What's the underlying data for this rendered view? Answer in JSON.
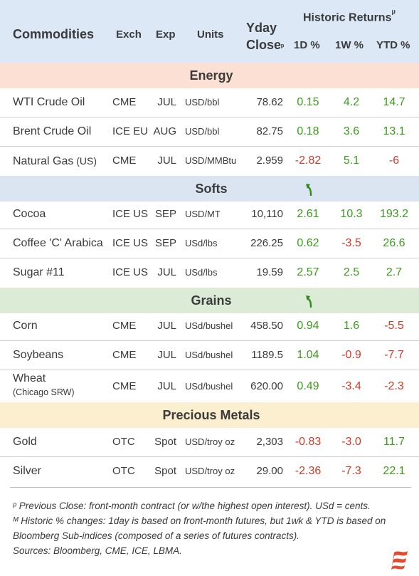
{
  "header": {
    "commodities": "Commodities",
    "exch": "Exch",
    "exp": "Exp",
    "units": "Units",
    "yday_line1": "Yday",
    "yday_line2": "Close",
    "yday_mark": "ᵖ",
    "historic": "Historic Returns",
    "historic_mark": "μ",
    "d1": "1D %",
    "w1": "1W %",
    "ytd": "YTD %"
  },
  "sections": {
    "energy": "Energy",
    "softs": "Softs",
    "grains": "Grains",
    "metals": "Precious Metals"
  },
  "rows": {
    "wti": {
      "name": "WTI Crude Oil",
      "exch": "CME",
      "exp": "JUL",
      "units": "USD/bbl",
      "close": "78.62",
      "d1": "0.15",
      "w1": "4.2",
      "ytd": "14.7"
    },
    "brent": {
      "name": "Brent Crude Oil",
      "exch": "ICE EU",
      "exp": "AUG",
      "units": "USD/bbl",
      "close": "82.75",
      "d1": "0.18",
      "w1": "3.6",
      "ytd": "13.1"
    },
    "natgas": {
      "name": "Natural Gas",
      "name_suffix": " (US)",
      "exch": "CME",
      "exp": "JUL",
      "units": "USD/MMBtu",
      "close": "2.959",
      "d1": "-2.82",
      "w1": "5.1",
      "ytd": "-6"
    },
    "cocoa": {
      "name": "Cocoa",
      "exch": "ICE US",
      "exp": "SEP",
      "units": "USD/MT",
      "close": "10,110",
      "d1": "2.61",
      "w1": "10.3",
      "ytd": "193.2"
    },
    "coffee": {
      "name": "Coffee 'C' Arabica",
      "exch": "ICE US",
      "exp": "SEP",
      "units": "USd/lbs",
      "close": "226.25",
      "d1": "0.62",
      "w1": "-3.5",
      "ytd": "26.6"
    },
    "sugar": {
      "name": "Sugar #11",
      "exch": "ICE US",
      "exp": "JUL",
      "units": "USd/lbs",
      "close": "19.59",
      "d1": "2.57",
      "w1": "2.5",
      "ytd": "2.7"
    },
    "corn": {
      "name": "Corn",
      "exch": "CME",
      "exp": "JUL",
      "units": "USd/bushel",
      "close": "458.50",
      "d1": "0.94",
      "w1": "1.6",
      "ytd": "-5.5"
    },
    "soy": {
      "name": "Soybeans",
      "exch": "CME",
      "exp": "JUL",
      "units": "USd/bushel",
      "close": "1189.5",
      "d1": "1.04",
      "w1": "-0.9",
      "ytd": "-7.7"
    },
    "wheat": {
      "name": "Wheat",
      "name_sub": "(Chicago SRW)",
      "exch": "CME",
      "exp": "JUL",
      "units": "USd/bushel",
      "close": "620.00",
      "d1": "0.49",
      "w1": "-3.4",
      "ytd": "-2.3"
    },
    "gold": {
      "name": "Gold",
      "exch": "OTC",
      "exp": "Spot",
      "units": "USD/troy oz",
      "close": "2,303",
      "d1": "-0.83",
      "w1": "-3.0",
      "ytd": "11.7"
    },
    "silver": {
      "name": "Silver",
      "exch": "OTC",
      "exp": "Spot",
      "units": "USD/troy oz",
      "close": "29.00",
      "d1": "-2.36",
      "w1": "-7.3",
      "ytd": "22.1"
    }
  },
  "footer": {
    "note1": "ᵖ Previous Close: front-month contract (or w/the highest open interest). USd = cents.",
    "note2": "ᴹ Historic % changes: 1day is based on front-month futures, but 1wk & YTD is based on Bloomberg Sub-indices (composed of a series of futures contracts).",
    "sources": "Sources: Bloomberg, CME, ICE, LBMA."
  },
  "icons": {
    "trend_arrow": "curved-up-arrow-icon",
    "logo": "brand-flag-logo"
  },
  "colors": {
    "positive": "#3c9a1e",
    "negative": "#d23a26",
    "header_bg": "#dce8f5",
    "energy_bg": "#fbe0d3",
    "softs_bg": "#dbe5f2",
    "grains_bg": "#dcebd5",
    "metals_bg": "#fcefcf"
  }
}
